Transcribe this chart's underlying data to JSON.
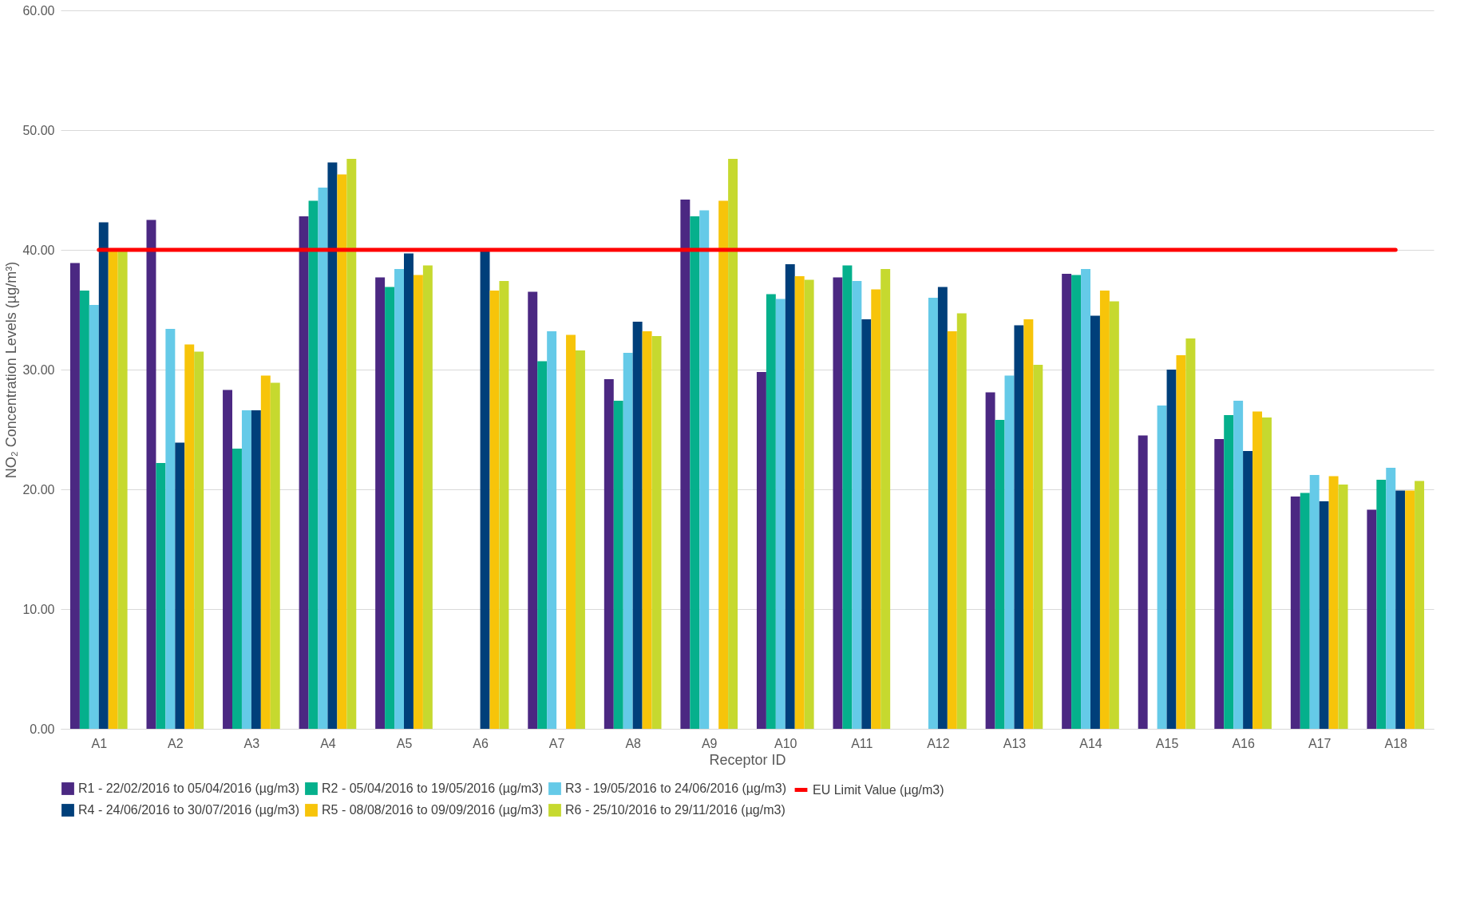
{
  "chart_data": {
    "type": "bar",
    "xlabel": "Receptor ID",
    "ylabel": "NO₂ Concentration Levels  (µg/m³)",
    "categories": [
      "A1",
      "A2",
      "A3",
      "A4",
      "A5",
      "A6",
      "A7",
      "A8",
      "A9",
      "A10",
      "A11",
      "A12",
      "A13",
      "A14",
      "A15",
      "A16",
      "A17",
      "A18"
    ],
    "series": [
      {
        "name": "R1 - 22/02/2016 to 05/04/2016 (µg/m3)",
        "color": "#4b2882",
        "values": [
          38.9,
          42.5,
          28.3,
          42.8,
          37.7,
          null,
          36.5,
          29.2,
          44.2,
          29.8,
          37.7,
          null,
          28.1,
          38.0,
          24.5,
          24.2,
          19.4,
          18.3
        ]
      },
      {
        "name": "R2 - 05/04/2016 to 19/05/2016 (µg/m3)",
        "color": "#05b08c",
        "values": [
          36.6,
          22.2,
          23.4,
          44.1,
          36.9,
          null,
          30.7,
          27.4,
          42.8,
          36.3,
          38.7,
          null,
          25.8,
          37.9,
          null,
          26.2,
          19.7,
          20.8
        ]
      },
      {
        "name": "R3 - 19/05/2016 to 24/06/2016 (µg/m3)",
        "color": "#65cae8",
        "values": [
          35.4,
          33.4,
          26.6,
          45.2,
          38.4,
          null,
          33.2,
          31.4,
          43.3,
          35.9,
          37.4,
          36.0,
          29.5,
          38.4,
          27.0,
          27.4,
          21.2,
          21.8
        ]
      },
      {
        "name": "R4 - 24/06/2016 to 30/07/2016 (µg/m3)",
        "color": "#003f7a",
        "values": [
          42.3,
          23.9,
          26.6,
          47.3,
          39.7,
          40.0,
          null,
          34.0,
          null,
          38.8,
          34.2,
          36.9,
          33.7,
          34.5,
          30.0,
          23.2,
          19.0,
          19.9
        ]
      },
      {
        "name": "R5 - 08/08/2016 to 09/09/2016 (µg/m3)",
        "color": "#f7c40a",
        "values": [
          40.0,
          32.1,
          29.5,
          46.3,
          37.9,
          36.6,
          32.9,
          33.2,
          44.1,
          37.8,
          36.7,
          33.2,
          34.2,
          36.6,
          31.2,
          26.5,
          21.1,
          19.9
        ]
      },
      {
        "name": "R6 - 25/10/2016 to 29/11/2016 (µg/m3)",
        "color": "#c6d92f",
        "values": [
          40.0,
          31.5,
          28.9,
          47.6,
          38.7,
          37.4,
          31.6,
          32.8,
          47.6,
          37.5,
          38.4,
          34.7,
          30.4,
          35.7,
          32.6,
          26.0,
          20.4,
          20.7
        ]
      },
      {
        "name": "EU Limit Value (µg/m3)",
        "color": "#ff0000",
        "type": "line",
        "values": [
          40,
          40,
          40,
          40,
          40,
          40,
          40,
          40,
          40,
          40,
          40,
          40,
          40,
          40,
          40,
          40,
          40,
          40
        ]
      }
    ],
    "ylim": [
      0,
      60
    ],
    "yticks": [
      {
        "value": 0,
        "label": "0.00"
      },
      {
        "value": 10,
        "label": "10.00"
      },
      {
        "value": 20,
        "label": "20.00"
      },
      {
        "value": 30,
        "label": "30.00"
      },
      {
        "value": 40,
        "label": "40.00"
      },
      {
        "value": 50,
        "label": "50.00"
      },
      {
        "value": 60,
        "label": "60.00"
      }
    ],
    "grid": "y",
    "legend": "bottom",
    "marker": "none"
  }
}
